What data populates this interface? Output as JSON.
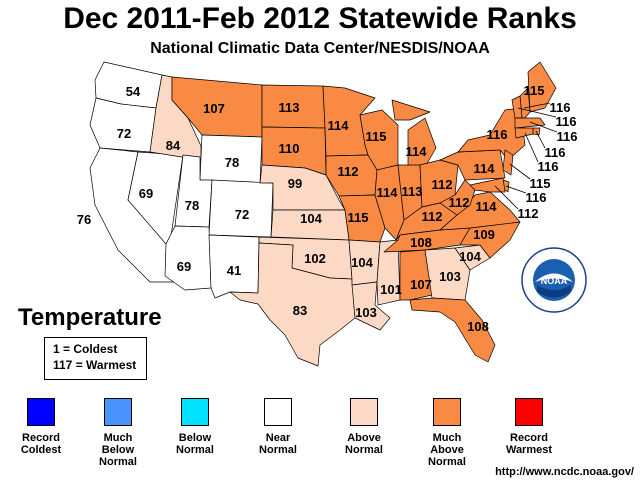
{
  "title": "Dec 2011-Feb 2012 Statewide Ranks",
  "subtitle": "National Climatic Data Center/NESDIS/NOAA",
  "parameter": "Temperature",
  "key": [
    "1 = Coldest",
    "117 = Warmest"
  ],
  "url": "http://www.ncdc.noaa.gov/",
  "seal_text": "NOAA",
  "categories": [
    {
      "label": "Record\nColdest",
      "color": "#0000ff"
    },
    {
      "label": "Much\nBelow\nNormal",
      "color": "#4a94ff"
    },
    {
      "label": "Below\nNormal",
      "color": "#00e0ff"
    },
    {
      "label": "Near\nNormal",
      "color": "#ffffff"
    },
    {
      "label": "Above\nNormal",
      "color": "#fcd9c4"
    },
    {
      "label": "Much\nAbove\nNormal",
      "color": "#f98a44"
    },
    {
      "label": "Record\nWarmest",
      "color": "#ff0000"
    }
  ],
  "states": [
    {
      "name": "WA",
      "rank": "54",
      "category": 3
    },
    {
      "name": "OR",
      "rank": "72",
      "category": 3
    },
    {
      "name": "CA",
      "rank": "76",
      "category": 3
    },
    {
      "name": "NV",
      "rank": "69",
      "category": 3
    },
    {
      "name": "ID",
      "rank": "84",
      "category": 4
    },
    {
      "name": "MT",
      "rank": "107",
      "category": 5
    },
    {
      "name": "WY",
      "rank": "78",
      "category": 3
    },
    {
      "name": "UT",
      "rank": "78",
      "category": 3
    },
    {
      "name": "CO",
      "rank": "72",
      "category": 3
    },
    {
      "name": "AZ",
      "rank": "69",
      "category": 3
    },
    {
      "name": "NM",
      "rank": "41",
      "category": 3
    },
    {
      "name": "ND",
      "rank": "113",
      "category": 5
    },
    {
      "name": "SD",
      "rank": "110",
      "category": 5
    },
    {
      "name": "NE",
      "rank": "99",
      "category": 4
    },
    {
      "name": "KS",
      "rank": "104",
      "category": 4
    },
    {
      "name": "OK",
      "rank": "102",
      "category": 4
    },
    {
      "name": "TX",
      "rank": "83",
      "category": 4
    },
    {
      "name": "MN",
      "rank": "114",
      "category": 5
    },
    {
      "name": "IA",
      "rank": "112",
      "category": 5
    },
    {
      "name": "MO",
      "rank": "115",
      "category": 5
    },
    {
      "name": "AR",
      "rank": "104",
      "category": 4
    },
    {
      "name": "LA",
      "rank": "103",
      "category": 4
    },
    {
      "name": "WI",
      "rank": "115",
      "category": 5
    },
    {
      "name": "IL",
      "rank": "114",
      "category": 5
    },
    {
      "name": "MS",
      "rank": "101",
      "category": 4
    },
    {
      "name": "MI",
      "rank": "114",
      "category": 5
    },
    {
      "name": "IN",
      "rank": "113",
      "category": 5
    },
    {
      "name": "OH",
      "rank": "112",
      "category": 5
    },
    {
      "name": "KY",
      "rank": "112",
      "category": 5
    },
    {
      "name": "TN",
      "rank": "108",
      "category": 5
    },
    {
      "name": "AL",
      "rank": "107",
      "category": 5
    },
    {
      "name": "GA",
      "rank": "103",
      "category": 4
    },
    {
      "name": "FL",
      "rank": "108",
      "category": 5
    },
    {
      "name": "SC",
      "rank": "104",
      "category": 4
    },
    {
      "name": "NC",
      "rank": "109",
      "category": 5
    },
    {
      "name": "VA",
      "rank": "114",
      "category": 5
    },
    {
      "name": "WV",
      "rank": "112",
      "category": 5
    },
    {
      "name": "PA",
      "rank": "114",
      "category": 5
    },
    {
      "name": "NY",
      "rank": "116",
      "category": 5
    },
    {
      "name": "ME",
      "rank": "115",
      "category": 5
    },
    {
      "name": "NH",
      "rank": "116",
      "category": 5
    },
    {
      "name": "VT",
      "rank": "116",
      "category": 5
    },
    {
      "name": "MA",
      "rank": "116",
      "category": 5
    },
    {
      "name": "RI",
      "rank": "116",
      "category": 5
    },
    {
      "name": "CT",
      "rank": "116",
      "category": 5
    },
    {
      "name": "NJ",
      "rank": "115",
      "category": 5
    },
    {
      "name": "DE",
      "rank": "116",
      "category": 5
    },
    {
      "name": "MD",
      "rank": "112",
      "category": 5
    }
  ]
}
